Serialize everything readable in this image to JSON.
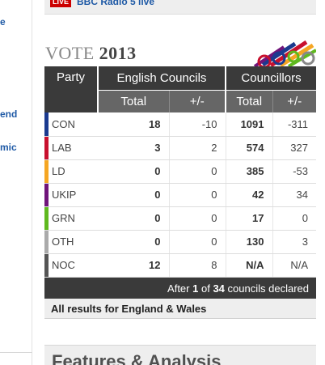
{
  "live_strip": {
    "badge": "LIVE",
    "text": "BBC Radio 5 live"
  },
  "left_links": [
    "e",
    "end",
    "mic"
  ],
  "vote": {
    "title_prefix": "VOTE",
    "title_year": "2013"
  },
  "table": {
    "headers": {
      "party": "Party",
      "english_councils": "English Councils",
      "councillors": "Councillors",
      "total": "Total",
      "change": "+/-"
    },
    "rows": [
      {
        "party": "CON",
        "color": "#1b3a8f",
        "councils_total": "18",
        "councils_change": "-10",
        "councillors_total": "1091",
        "councillors_change": "-311"
      },
      {
        "party": "LAB",
        "color": "#c8102e",
        "councils_total": "3",
        "councils_change": "2",
        "councillors_total": "574",
        "councillors_change": "327"
      },
      {
        "party": "LD",
        "color": "#f5a623",
        "councils_total": "0",
        "councils_change": "0",
        "councillors_total": "385",
        "councillors_change": "-53"
      },
      {
        "party": "UKIP",
        "color": "#70147a",
        "councils_total": "0",
        "councils_change": "0",
        "councillors_total": "42",
        "councillors_change": "34"
      },
      {
        "party": "GRN",
        "color": "#5fb91f",
        "councils_total": "0",
        "councils_change": "0",
        "councillors_total": "17",
        "councillors_change": "0"
      },
      {
        "party": "OTH",
        "color": "#aaaaaa",
        "councils_total": "0",
        "councils_change": "0",
        "councillors_total": "130",
        "councillors_change": "3"
      },
      {
        "party": "NOC",
        "color": "#555555",
        "councils_total": "12",
        "councils_change": "8",
        "councillors_total": "N/A",
        "councillors_change": "N/A"
      }
    ],
    "footer": {
      "prefix": "After",
      "declared": "1",
      "of": "of",
      "total": "34",
      "suffix": "councils declared"
    }
  },
  "all_results_link": "All results for England & Wales",
  "features_title": "Features & Analysis"
}
